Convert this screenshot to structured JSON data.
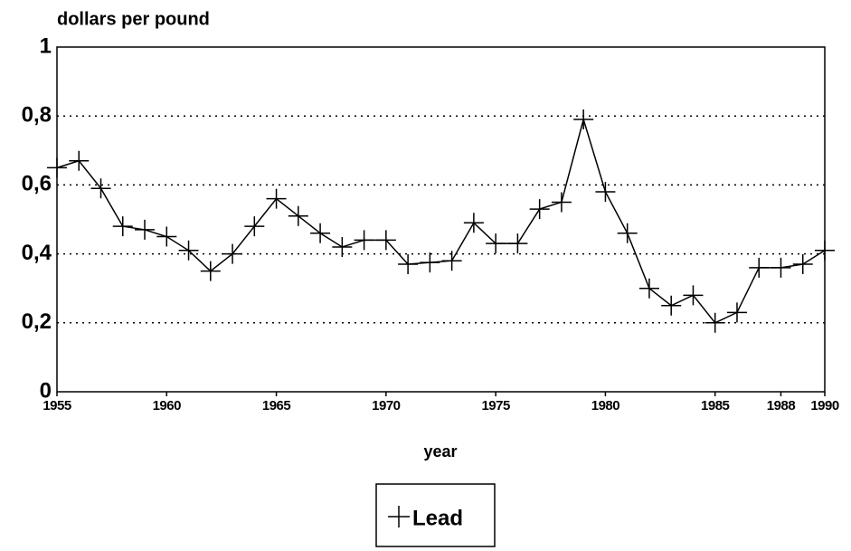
{
  "chart_data": {
    "type": "line",
    "y_label": "dollars per pound",
    "x_label": "year",
    "x": [
      1955,
      1956,
      1957,
      1958,
      1959,
      1960,
      1961,
      1962,
      1963,
      1964,
      1965,
      1966,
      1967,
      1968,
      1969,
      1970,
      1971,
      1972,
      1973,
      1974,
      1975,
      1976,
      1977,
      1978,
      1979,
      1980,
      1981,
      1982,
      1983,
      1984,
      1985,
      1986,
      1987,
      1988,
      1989,
      1990
    ],
    "series": [
      {
        "name": "Lead",
        "color": "#000000",
        "marker": "+",
        "values": [
          0.65,
          0.67,
          0.59,
          0.48,
          0.47,
          0.45,
          0.41,
          0.35,
          0.4,
          0.48,
          0.56,
          0.51,
          0.46,
          0.42,
          0.44,
          0.44,
          0.37,
          0.375,
          0.38,
          0.49,
          0.43,
          0.43,
          0.53,
          0.55,
          0.79,
          0.58,
          0.46,
          0.3,
          0.25,
          0.28,
          0.2,
          0.23,
          0.36,
          0.36,
          0.37,
          0.41
        ]
      }
    ],
    "xlim": [
      1955,
      1990
    ],
    "xticks": [
      1955,
      1960,
      1965,
      1970,
      1975,
      1980,
      1985,
      1988,
      1990
    ],
    "ylim": [
      0,
      1
    ],
    "yticks": [
      0,
      {
        "value": 0.2,
        "label": "0,2"
      },
      {
        "value": 0.4,
        "label": "0,4"
      },
      {
        "value": 0.6,
        "label": "0,6"
      },
      {
        "value": 0.8,
        "label": "0,8"
      },
      1
    ],
    "grid": true,
    "legend": "bottom"
  }
}
